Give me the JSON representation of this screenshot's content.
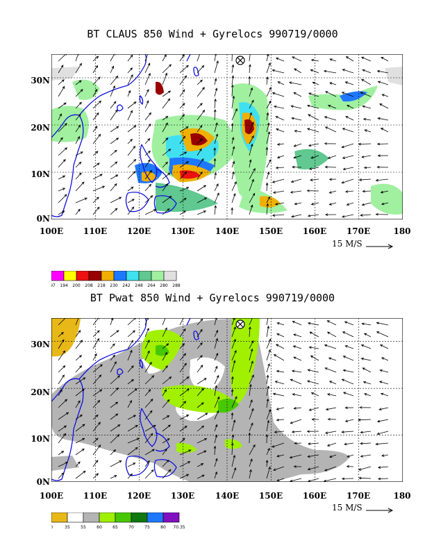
{
  "panel_top": {
    "title": "BT CLAUS 850 Wind + Gyrelocs 990719/0000",
    "y_ticks": [
      "30N",
      "20N",
      "10N",
      "0N"
    ],
    "x_ticks": [
      "100E",
      "110E",
      "120E",
      "130E",
      "140E",
      "150E",
      "160E",
      "170E",
      "180"
    ],
    "vector_scale": "15 M/S",
    "legend": {
      "labels": [
        "197",
        "194",
        "200",
        "208",
        "218",
        "230",
        "242",
        "248",
        "264",
        "280",
        "288"
      ],
      "colors": [
        "#ff00ff",
        "#ffff00",
        "#ee1111",
        "#990000",
        "#f0b000",
        "#1e78ff",
        "#40e0f0",
        "#60c890",
        "#a0f0a0",
        "#e0e0e0"
      ]
    }
  },
  "panel_bottom": {
    "title": "BT Pwat 850 Wind + Gyrelocs 990719/0000",
    "y_ticks": [
      "30N",
      "20N",
      "10N",
      "0N"
    ],
    "x_ticks": [
      "100E",
      "110E",
      "120E",
      "130E",
      "140E",
      "150E",
      "160E",
      "170E",
      "180"
    ],
    "vector_scale": "15 M/S",
    "legend": {
      "labels": [
        "0",
        "35",
        "55",
        "60",
        "65",
        "70",
        "75",
        "80",
        "70.35"
      ],
      "colors": [
        "#e8b818",
        "#ffffff",
        "#b4b4b4",
        "#a0f000",
        "#48c800",
        "#107810",
        "#1e78ff",
        "#8010c0"
      ]
    }
  }
}
